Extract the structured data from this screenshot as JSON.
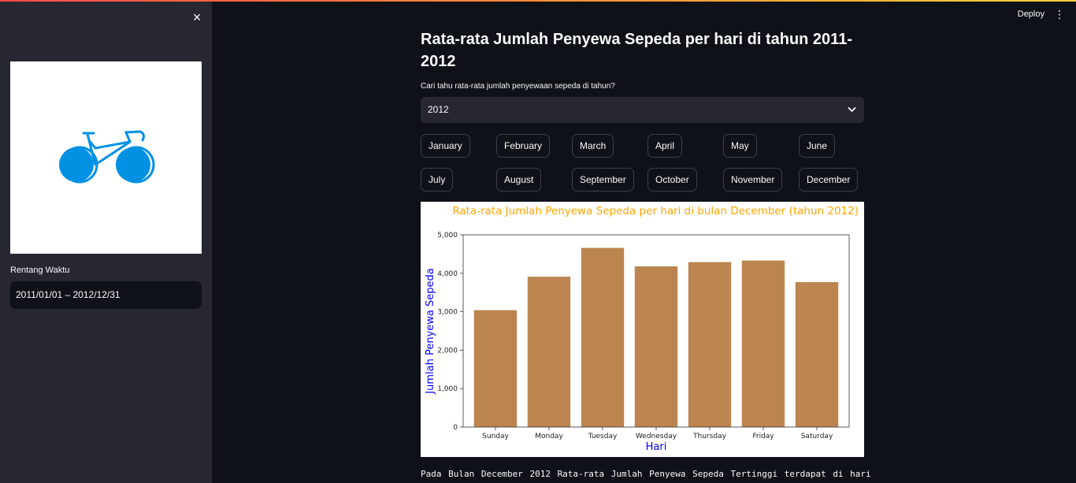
{
  "sidebar": {
    "close_icon": "×",
    "logo_icon": "bicycle-icon",
    "date_label": "Rentang Waktu",
    "date_range": "2011/01/01 – 2012/12/31"
  },
  "header": {
    "deploy_label": "Deploy",
    "menu_icon": "⋮"
  },
  "main": {
    "title": "Rata-rata Jumlah Penyewa Sepeda per hari di tahun 2011-2012",
    "select_label": "Cari tahu rata-rata jumlah penyewaan sepeda di tahun?",
    "select_value": "2012",
    "months": [
      "January",
      "February",
      "March",
      "April",
      "May",
      "June",
      "July",
      "August",
      "September",
      "October",
      "November",
      "December"
    ],
    "footer_text": "Pada Bulan December 2012 Rata-rata Jumlah Penyewa Sepeda Tertinggi terdapat di hari"
  },
  "chart_data": {
    "type": "bar",
    "title": "Rata-rata Jumlah Penyewa Sepeda per hari di bulan December (tahun 2012)",
    "xlabel": "Hari",
    "ylabel": "Jumlah Penyewa Sepeda",
    "categories": [
      "Sunday",
      "Monday",
      "Tuesday",
      "Wednesday",
      "Thursday",
      "Friday",
      "Saturday"
    ],
    "values": [
      3040,
      3910,
      4660,
      4180,
      4290,
      4330,
      3770
    ],
    "ylim": [
      0,
      5000
    ],
    "yticks": [
      0,
      1000,
      2000,
      3000,
      4000,
      5000
    ],
    "ytick_labels": [
      "0",
      "1,000",
      "2,000",
      "3,000",
      "4,000",
      "5,000"
    ],
    "bar_color": "#bc8550",
    "title_color": "#ffa500",
    "label_color": "#0000ff",
    "grid": false
  }
}
